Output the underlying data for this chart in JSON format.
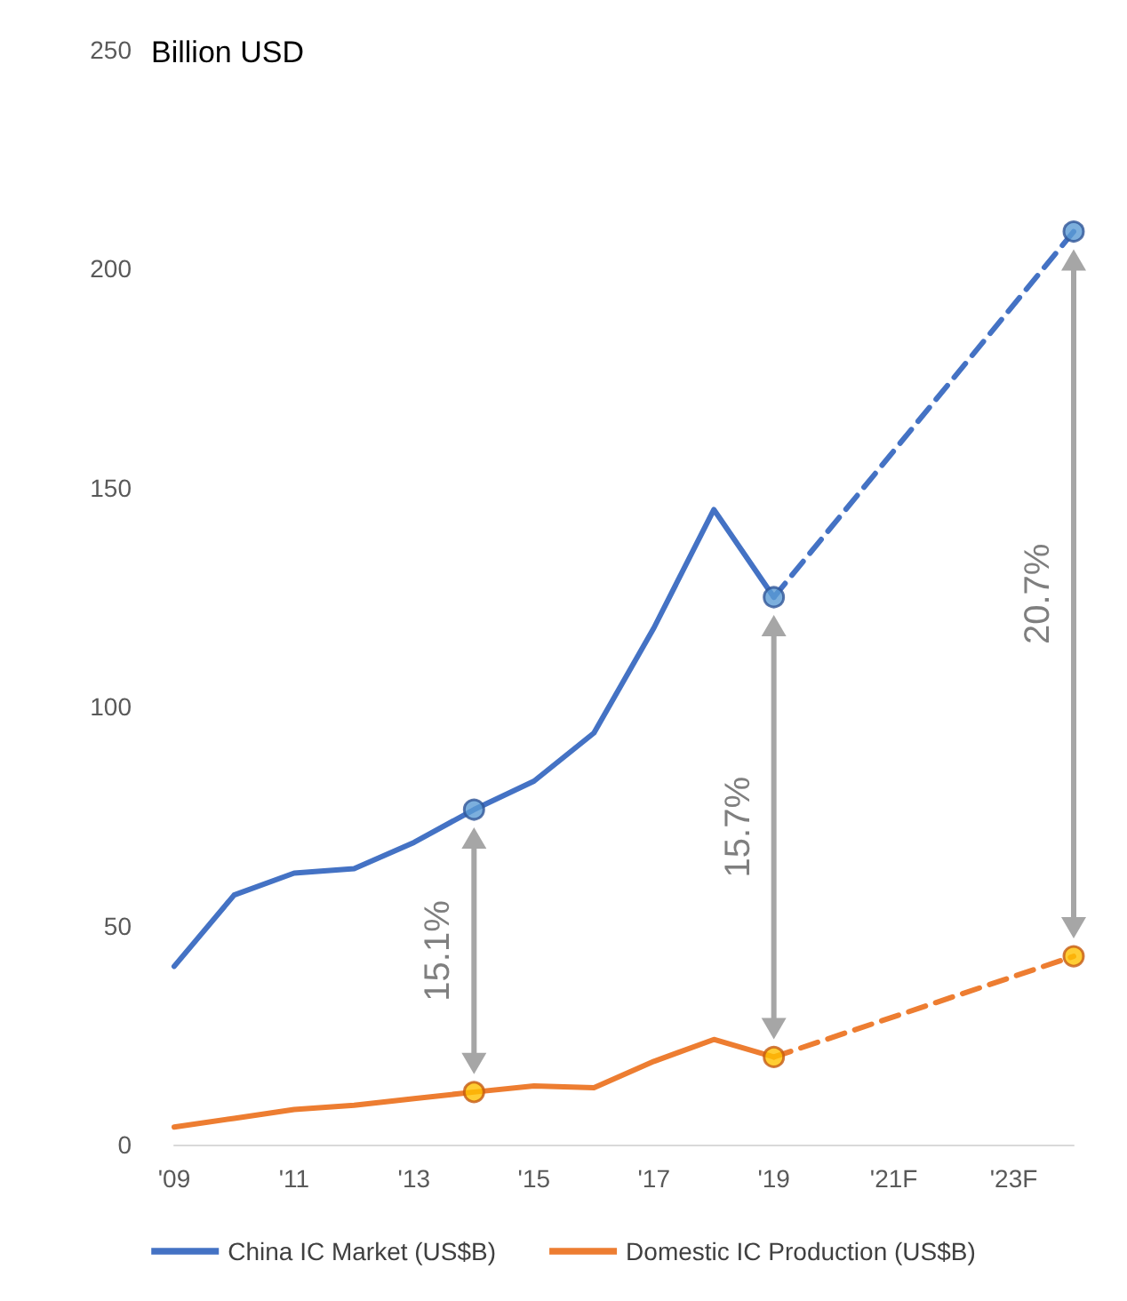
{
  "chart_data": {
    "type": "line",
    "ylabel": "Billion USD",
    "categories": [
      "'09",
      null,
      "'11",
      null,
      "'13",
      null,
      "'15",
      null,
      "'17",
      null,
      "'19",
      null,
      "'21F",
      null,
      "'23F",
      null
    ],
    "series": [
      {
        "name": "China IC Market (US$B)",
        "color": "#4472c4",
        "values": [
          40.7,
          57,
          62,
          63,
          69,
          76.5,
          83,
          94,
          118,
          145,
          125,
          null,
          null,
          null,
          null,
          null
        ]
      },
      {
        "color": "#4472c4",
        "line_style": "dashed",
        "values": [
          null,
          null,
          null,
          null,
          null,
          null,
          null,
          null,
          null,
          null,
          125,
          null,
          null,
          null,
          null,
          208.5
        ]
      },
      {
        "name": "Domestic IC Production (US$B)",
        "color": "#ed7d31",
        "values": [
          4,
          6,
          8,
          9,
          10.5,
          12,
          13.4,
          13,
          19,
          24,
          20,
          null,
          null,
          null,
          null,
          null
        ]
      },
      {
        "color": "#ed7d31",
        "line_style": "dashed",
        "values": [
          null,
          null,
          null,
          null,
          null,
          null,
          null,
          null,
          null,
          null,
          20,
          null,
          null,
          null,
          null,
          43
        ]
      },
      {
        "type": "scatter",
        "marker": "circle",
        "color": "#5b9bd5",
        "values": [
          null,
          null,
          null,
          null,
          null,
          76.5,
          null,
          null,
          null,
          null,
          125,
          null,
          null,
          null,
          null,
          208.5
        ]
      },
      {
        "type": "scatter",
        "marker": "circle",
        "color": "#ffc000",
        "values": [
          null,
          null,
          null,
          null,
          null,
          12,
          null,
          null,
          null,
          null,
          20,
          null,
          null,
          null,
          null,
          43
        ]
      }
    ],
    "annotations": [
      "15.1%",
      "15.7%",
      "20.7%"
    ],
    "ylim": [
      0,
      250
    ],
    "yticks": [
      0,
      50,
      100,
      150,
      200,
      250
    ],
    "legend": "bottom",
    "line_style": "solid"
  }
}
